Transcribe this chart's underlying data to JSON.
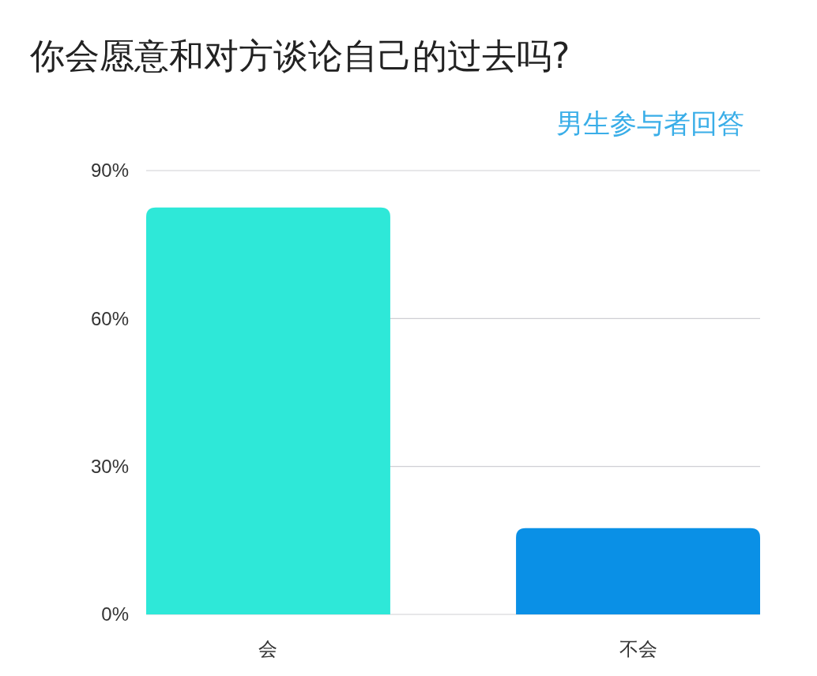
{
  "chart_data": {
    "type": "bar",
    "title": "你会愿意和对方谈论自己的过去吗?",
    "subtitle": "男生参与者回答",
    "categories": [
      "会",
      "不会"
    ],
    "values": [
      82.5,
      17.5
    ],
    "colors": [
      "#2ee8d8",
      "#0a90e6"
    ],
    "ylim": [
      0,
      90
    ],
    "yticks": [
      {
        "value": 0,
        "label": "0%"
      },
      {
        "value": 30,
        "label": "30%"
      },
      {
        "value": 60,
        "label": "60%"
      },
      {
        "value": 90,
        "label": "90%"
      }
    ],
    "grid": "y"
  }
}
